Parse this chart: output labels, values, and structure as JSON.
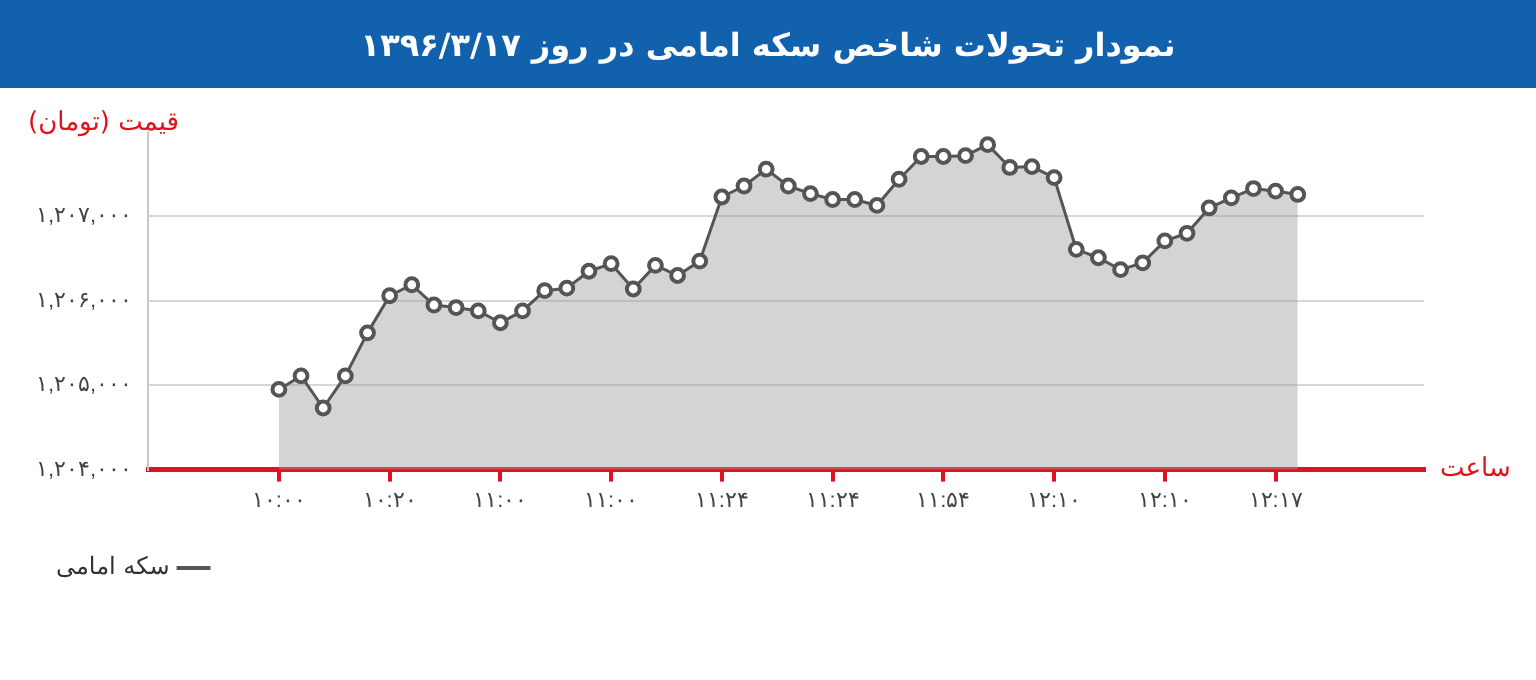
{
  "chart_data": {
    "type": "area",
    "title": "نمودار تحولات شاخص سکه امامی در روز ۱۳۹۶/۳/۱۷",
    "annotations": [
      "ساعت"
    ],
    "ylabel": "قیمت (تومان)",
    "categories": [
      "۱۰:۰۰",
      null,
      null,
      null,
      null,
      "۱۰:۲۰",
      null,
      null,
      null,
      null,
      "۱۱:۰۰",
      null,
      null,
      null,
      null,
      "۱۱:۰۰",
      null,
      null,
      null,
      null,
      "۱۱:۲۴",
      null,
      null,
      null,
      null,
      "۱۱:۲۴",
      null,
      null,
      null,
      null,
      "۱۱:۵۴",
      null,
      null,
      null,
      null,
      "۱۲:۱۰",
      null,
      null,
      null,
      null,
      "۱۲:۱۰",
      null,
      null,
      null,
      null,
      "۱۲:۱۷",
      null
    ],
    "series": [
      {
        "name": "سکه امامی",
        "color": "#555555",
        "values": [
          1204950,
          1205110,
          1204730,
          1205110,
          1205620,
          1206060,
          1206190,
          1205950,
          1205920,
          1205880,
          1205740,
          1205880,
          1206120,
          1206150,
          1206350,
          1206440,
          1206140,
          1206420,
          1206300,
          1206470,
          1207230,
          1207360,
          1207560,
          1207360,
          1207270,
          1207200,
          1207200,
          1207130,
          1207440,
          1207710,
          1207710,
          1207720,
          1207850,
          1207580,
          1207590,
          1207460,
          1206610,
          1206510,
          1206370,
          1206450,
          1206710,
          1206800,
          1207100,
          1207220,
          1207330,
          1207300,
          1207260
        ]
      }
    ],
    "ylim": [
      1204000,
      1208000
    ],
    "yticks": [
      {
        "value": 1204000,
        "label": "۱,۲۰۴,۰۰۰"
      },
      {
        "value": 1205000,
        "label": "۱,۲۰۵,۰۰۰"
      },
      {
        "value": 1206000,
        "label": "۱,۲۰۶,۰۰۰"
      },
      {
        "value": 1207000,
        "label": "۱,۲۰۷,۰۰۰"
      }
    ],
    "grid": "y",
    "legend": "bottom left",
    "marker": "circle",
    "line_style": "solid"
  }
}
